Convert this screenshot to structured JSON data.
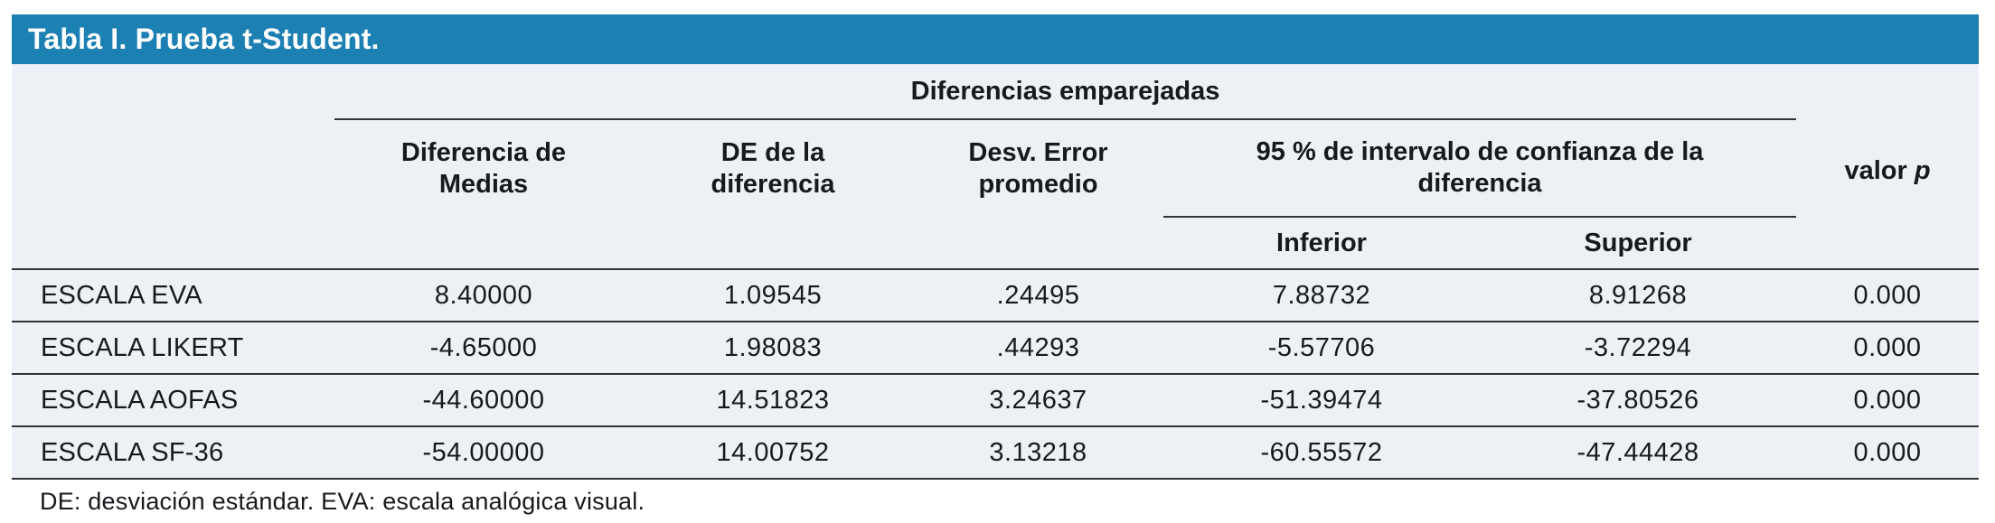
{
  "title": "Tabla I. Prueba t-Student.",
  "colors": {
    "accent": "#1c80b3",
    "panel_bg": "#edf1f6",
    "line": "#303438",
    "text": "#17191d",
    "title_text": "#ffffff"
  },
  "table": {
    "group_header": "Diferencias emparejadas",
    "col_headers": [
      {
        "line1": "Diferencia de",
        "line2": "Medias"
      },
      {
        "line1": "DE de la",
        "line2": "diferencia"
      },
      {
        "line1": "Desv. Error",
        "line2": "promedio"
      }
    ],
    "ci_header": {
      "line1": "95 % de intervalo de confianza de la",
      "line2": "diferencia"
    },
    "ci_subheaders": {
      "lower": "Inferior",
      "upper": "Superior"
    },
    "p_header": {
      "text": "valor",
      "symbol": "p"
    },
    "rows": [
      {
        "label": "ESCALA EVA",
        "values": [
          "8.40000",
          "1.09545",
          ".24495",
          "7.88732",
          "8.91268",
          "0.000"
        ]
      },
      {
        "label": "ESCALA LIKERT",
        "values": [
          "-4.65000",
          "1.98083",
          ".44293",
          "-5.57706",
          "-3.72294",
          "0.000"
        ]
      },
      {
        "label": "ESCALA AOFAS",
        "values": [
          "-44.60000",
          "14.51823",
          "3.24637",
          "-51.39474",
          "-37.80526",
          "0.000"
        ]
      },
      {
        "label": "ESCALA SF-36",
        "values": [
          "-54.00000",
          "14.00752",
          "3.13218",
          "-60.55572",
          "-47.44428",
          "0.000"
        ]
      }
    ],
    "footnote": "DE: desviación estándar. EVA: escala analógica visual."
  }
}
